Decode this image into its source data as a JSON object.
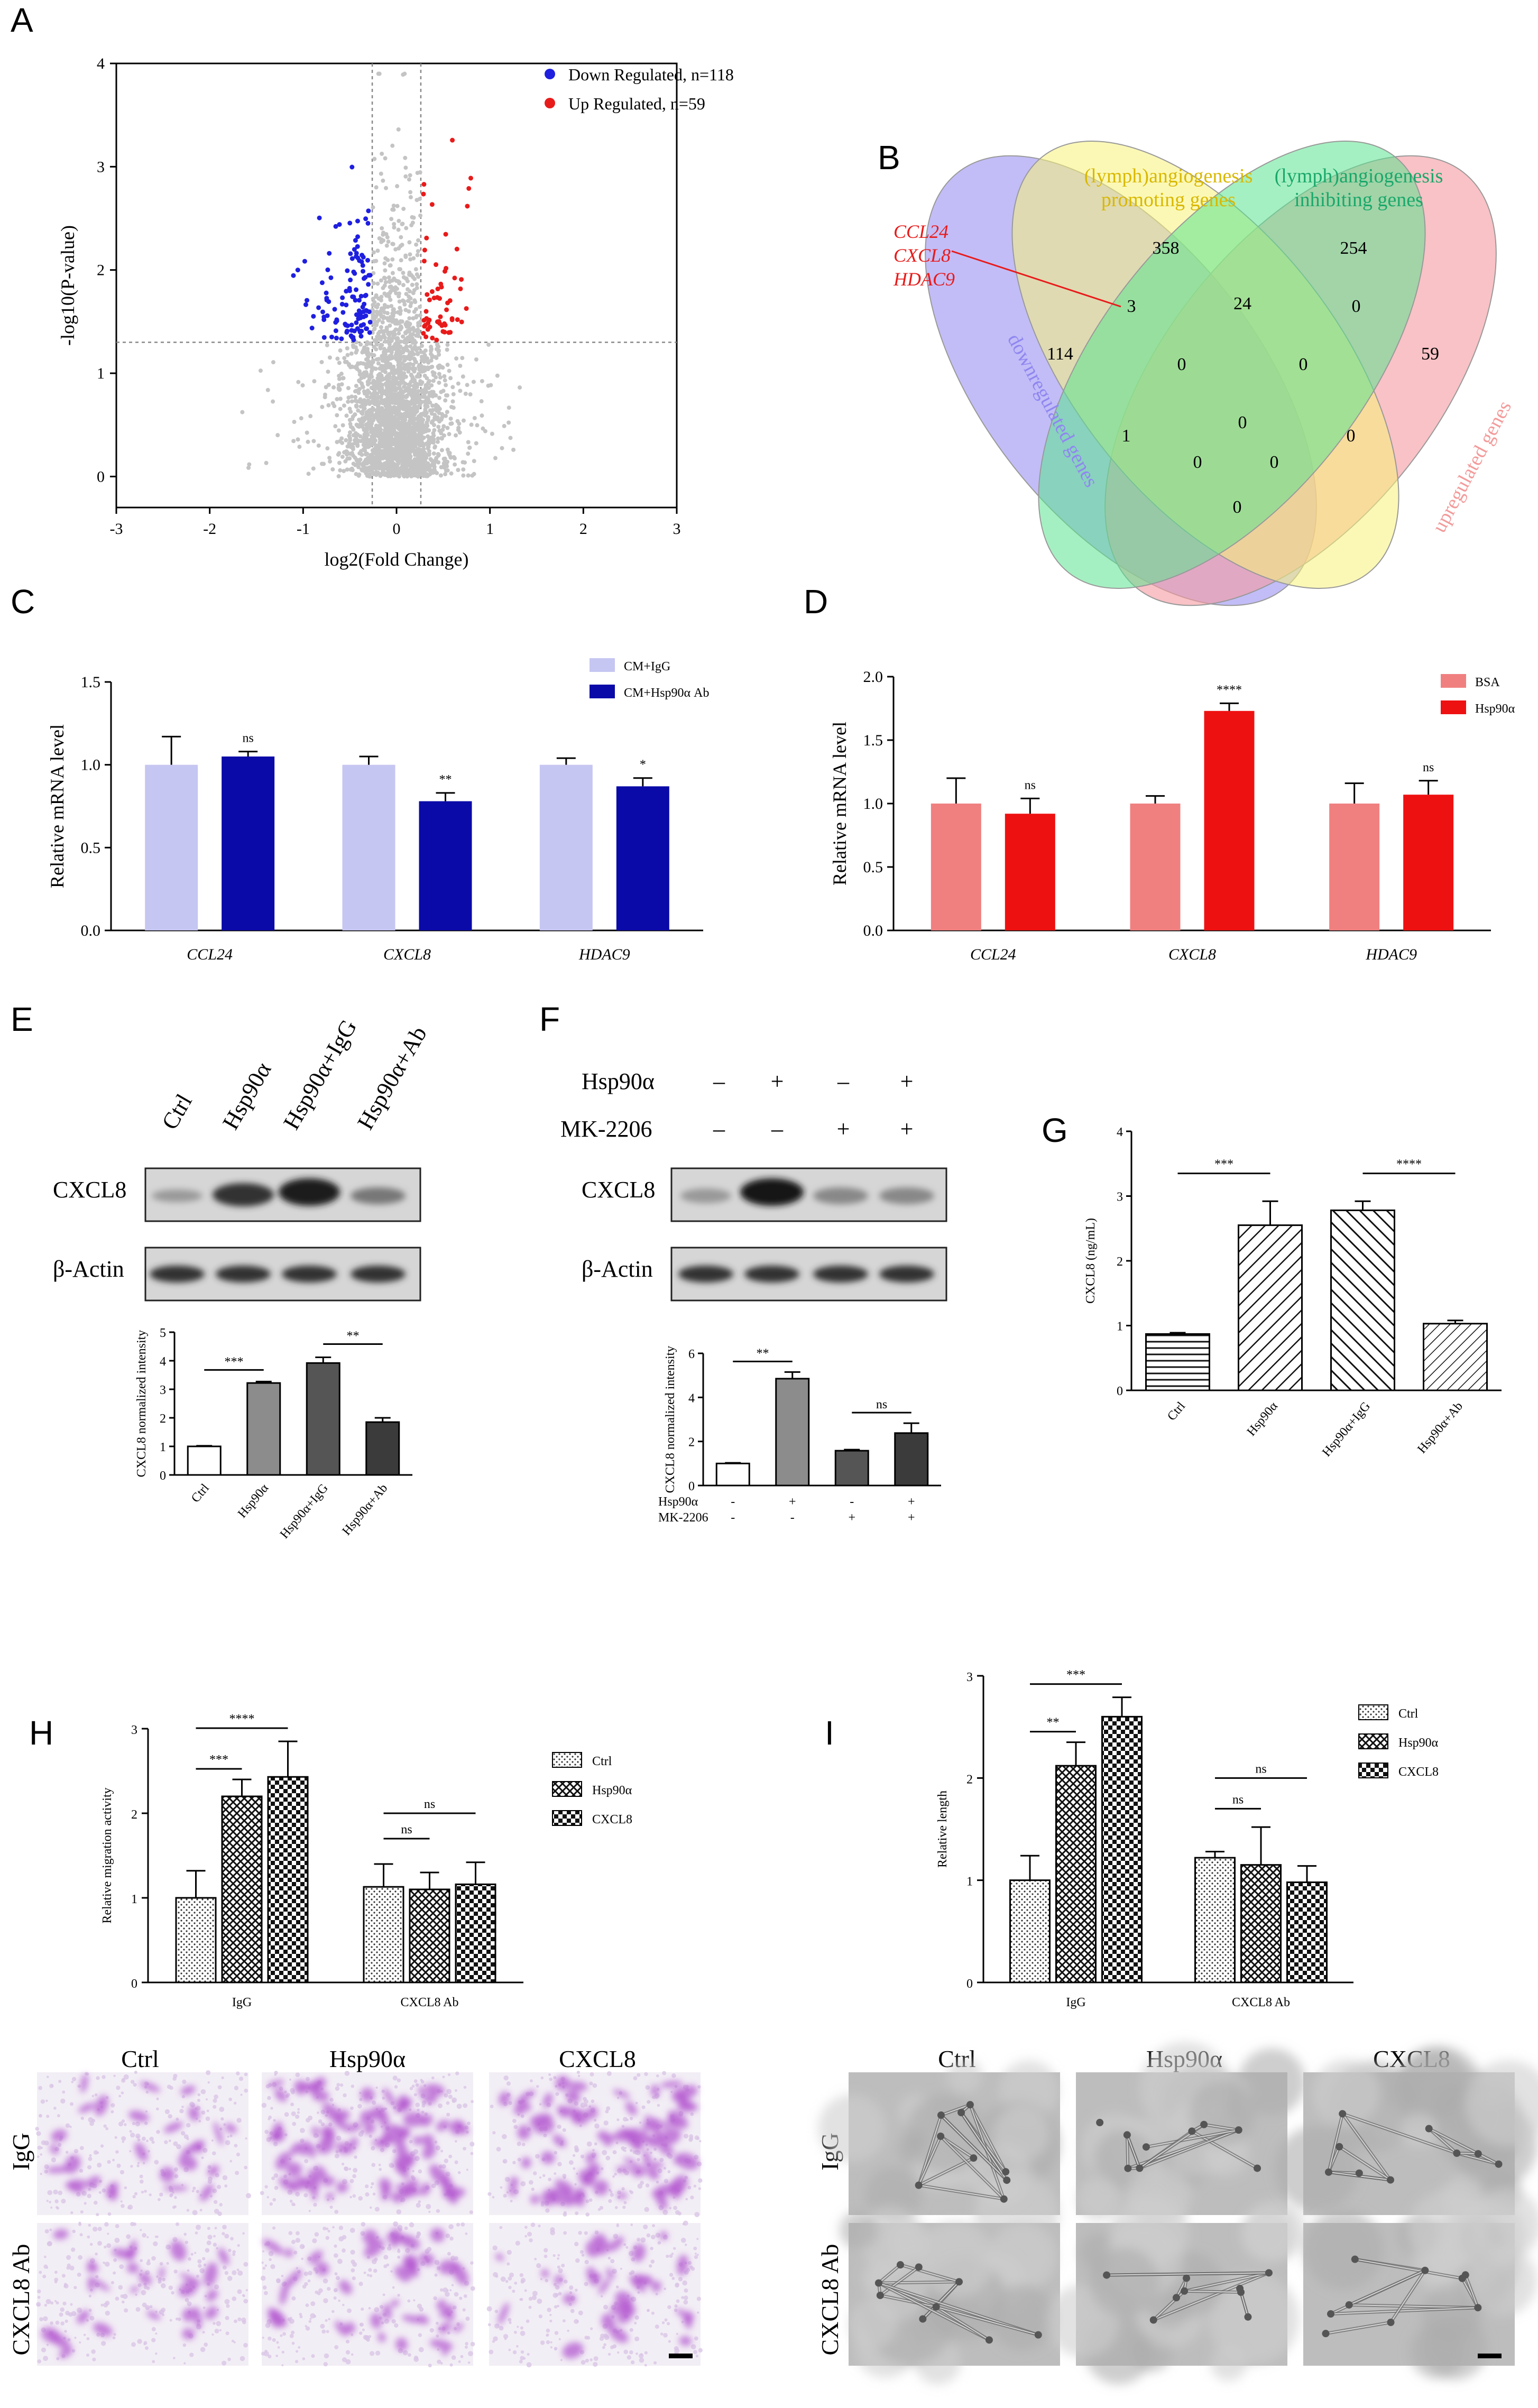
{
  "panels": {
    "A": "A",
    "B": "B",
    "C": "C",
    "D": "D",
    "E": "E",
    "F": "F",
    "G": "G",
    "H": "H",
    "I": "I"
  },
  "colors": {
    "down": "#1f1fe0",
    "up": "#e81b1b",
    "gray": "#c4c4c4",
    "igg_bar": "#c6c6f2",
    "ab_bar": "#0a0aa8",
    "bsa_bar": "#f08080",
    "hsp_bar": "#ee1111",
    "venn_yellow": "#f7f27a",
    "venn_green": "#5be38f",
    "venn_blue": "#8f86f0",
    "venn_pink": "#f59aa0",
    "venn_yellow_text": "#d9b800",
    "venn_green_text": "#1aa86a",
    "venn_blue_text": "#8f86f0",
    "venn_pink_text": "#f39a9a",
    "stain": "#b45ad0",
    "tube_bg": "#bdbdbd"
  },
  "chart_data": [
    {
      "id": "A",
      "type": "scatter",
      "xlabel": "log2(Fold Change)",
      "ylabel": "-log10(P-value)",
      "xlim": [
        -3,
        3
      ],
      "ylim": [
        -0.3,
        4
      ],
      "xticks": [
        "-3",
        "-2",
        "-1",
        "0",
        "1",
        "2",
        "3"
      ],
      "yticks": [
        "0",
        "1",
        "2",
        "3",
        "4"
      ],
      "threshold_x": [
        -0.26,
        0.26
      ],
      "threshold_y": 1.3,
      "legend": [
        "Down Regulated, n=118",
        "Up Regulated, n=59"
      ],
      "legend_position": "top-right"
    },
    {
      "id": "B",
      "type": "venn",
      "sets": [
        "(lymph)angiogenesis promoting genes",
        "(lymph)angiogenesis inhibiting genes",
        "downregulated genes",
        "upregulated genes"
      ],
      "set_label_lines": {
        "promoting": [
          "(lymph)angiogenesis",
          "promoting genes"
        ],
        "inhibiting": [
          "(lymph)angiogenesis",
          "inhibiting genes"
        ],
        "down": "downregulated genes",
        "up": "upregulated genes"
      },
      "region_counts": [
        "358",
        "254",
        "3",
        "24",
        "0",
        "114",
        "0",
        "0",
        "59",
        "0",
        "1",
        "0",
        "0",
        "0",
        "0"
      ],
      "callout_genes": [
        "CCL24",
        "CXCL8",
        "HDAC9"
      ]
    },
    {
      "id": "C",
      "type": "bar",
      "ylabel": "Relative mRNA level",
      "ylim": [
        0,
        1.5
      ],
      "yticks": [
        "0.0",
        "0.5",
        "1.0",
        "1.5"
      ],
      "categories": [
        "CCL24",
        "CXCL8",
        "HDAC9"
      ],
      "series": [
        {
          "name": "CM+IgG",
          "values": [
            1.0,
            1.0,
            1.0
          ],
          "errors": [
            0.17,
            0.05,
            0.04
          ]
        },
        {
          "name": "CM+Hsp90α Ab",
          "values": [
            1.05,
            0.78,
            0.87
          ],
          "errors": [
            0.03,
            0.05,
            0.05
          ]
        }
      ],
      "significance": [
        "ns",
        "**",
        "*"
      ]
    },
    {
      "id": "D",
      "type": "bar",
      "ylabel": "Relative mRNA level",
      "ylim": [
        0,
        2.0
      ],
      "yticks": [
        "0.0",
        "0.5",
        "1.0",
        "1.5",
        "2.0"
      ],
      "categories": [
        "CCL24",
        "CXCL8",
        "HDAC9"
      ],
      "series": [
        {
          "name": "BSA",
          "values": [
            1.0,
            1.0,
            1.0
          ],
          "errors": [
            0.2,
            0.06,
            0.16
          ]
        },
        {
          "name": "Hsp90α",
          "values": [
            0.92,
            1.73,
            1.07
          ],
          "errors": [
            0.12,
            0.06,
            0.11
          ]
        }
      ],
      "significance": [
        "ns",
        "****",
        "ns"
      ]
    },
    {
      "id": "E",
      "type": "bar",
      "ylabel": "CXCL8 normalized intensity",
      "ylim": [
        0,
        5
      ],
      "yticks": [
        "0",
        "1",
        "2",
        "3",
        "4",
        "5"
      ],
      "categories": [
        "Ctrl",
        "Hsp90α",
        "Hsp90α+IgG",
        "Hsp90α+Ab"
      ],
      "values": [
        1.0,
        3.22,
        3.92,
        1.85
      ],
      "errors": [
        0.02,
        0.05,
        0.2,
        0.15
      ],
      "significance": [
        "***",
        "**"
      ],
      "blot_lanes": [
        "Ctrl",
        "Hsp90α",
        "Hsp90α+IgG",
        "Hsp90α+Ab"
      ],
      "blot_rows": [
        "CXCL8",
        "β-Actin"
      ]
    },
    {
      "id": "F",
      "type": "bar",
      "ylabel": "CXCL8 normalized intensity",
      "ylim": [
        0,
        6
      ],
      "yticks": [
        "0",
        "2",
        "4",
        "6"
      ],
      "values": [
        1.0,
        4.85,
        1.58,
        2.38
      ],
      "errors": [
        0.03,
        0.3,
        0.05,
        0.45
      ],
      "treatment_rows": [
        {
          "name": "Hsp90α",
          "marks": [
            "-",
            "+",
            "-",
            "+"
          ]
        },
        {
          "name": "MK-2206",
          "marks": [
            "-",
            "-",
            "+",
            "+"
          ]
        }
      ],
      "blot_treatment_rows": [
        {
          "name": "Hsp90α",
          "marks": [
            "–",
            "+",
            "–",
            "+"
          ]
        },
        {
          "name": "MK-2206",
          "marks": [
            "–",
            "–",
            "+",
            "+"
          ]
        }
      ],
      "significance": [
        "**",
        "ns"
      ],
      "blot_rows": [
        "CXCL8",
        "β-Actin"
      ]
    },
    {
      "id": "G",
      "type": "bar",
      "ylabel": "CXCL8 (ng/mL)",
      "ylim": [
        0,
        4
      ],
      "yticks": [
        "0",
        "1",
        "2",
        "3",
        "4"
      ],
      "categories": [
        "Ctrl",
        "Hsp90α",
        "Hsp90α+IgG",
        "Hsp90α+Ab"
      ],
      "values": [
        0.87,
        2.55,
        2.78,
        1.03
      ],
      "errors": [
        0.02,
        0.37,
        0.14,
        0.05
      ],
      "significance": [
        "***",
        "****"
      ]
    },
    {
      "id": "H",
      "type": "bar",
      "ylabel": "Relative migration activity",
      "ylim": [
        0,
        3
      ],
      "yticks": [
        "0",
        "1",
        "2",
        "3"
      ],
      "categories": [
        "IgG",
        "CXCL8 Ab"
      ],
      "series": [
        {
          "name": "Ctrl",
          "values": [
            1.0,
            1.13
          ],
          "errors": [
            0.32,
            0.27
          ]
        },
        {
          "name": "Hsp90α",
          "values": [
            2.2,
            1.1
          ],
          "errors": [
            0.2,
            0.2
          ]
        },
        {
          "name": "CXCL8",
          "values": [
            2.43,
            1.16
          ],
          "errors": [
            0.42,
            0.26
          ]
        }
      ],
      "significance": [
        "***",
        "****",
        "ns",
        "ns"
      ],
      "image_cols": [
        "Ctrl",
        "Hsp90α",
        "CXCL8"
      ],
      "image_rows": [
        "IgG",
        "CXCL8 Ab"
      ]
    },
    {
      "id": "I",
      "type": "bar",
      "ylabel": "Relative length",
      "ylim": [
        0,
        3
      ],
      "yticks": [
        "0",
        "1",
        "2",
        "3"
      ],
      "categories": [
        "IgG",
        "CXCL8 Ab"
      ],
      "series": [
        {
          "name": "Ctrl",
          "values": [
            1.0,
            1.22
          ],
          "errors": [
            0.24,
            0.06
          ]
        },
        {
          "name": "Hsp90α",
          "values": [
            2.12,
            1.15
          ],
          "errors": [
            0.23,
            0.37
          ]
        },
        {
          "name": "CXCL8",
          "values": [
            2.6,
            0.98
          ],
          "errors": [
            0.19,
            0.16
          ]
        }
      ],
      "significance": [
        "**",
        "***",
        "ns",
        "ns"
      ],
      "image_cols": [
        "Ctrl",
        "Hsp90α",
        "CXCL8"
      ],
      "image_rows": [
        "IgG",
        "CXCL8 Ab"
      ]
    }
  ]
}
